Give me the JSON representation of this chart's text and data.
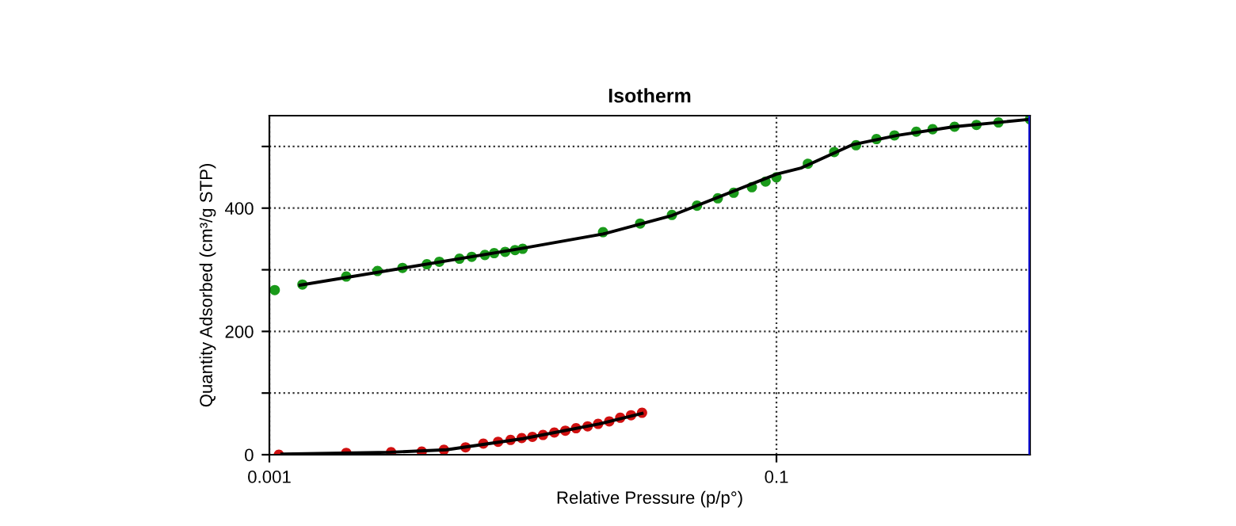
{
  "chart_data": {
    "type": "scatter",
    "title": "Isotherm",
    "xlabel": "Relative Pressure (p/p°)",
    "ylabel": "Quantity Adsorbed (cm³/g STP)",
    "log": "x",
    "xlim": [
      0.001,
      1
    ],
    "xticks": [
      0.001,
      0.1
    ],
    "ylim": [
      0,
      550
    ],
    "yticks": [
      0,
      {
        "value": 100,
        "label": null
      },
      200,
      {
        "value": 300,
        "label": null
      },
      400,
      {
        "value": 500,
        "label": null
      }
    ],
    "grid": true,
    "series": [
      {
        "marker": "circle",
        "color": "#1a9a1a",
        "x": [
          0.00105,
          0.00135,
          0.00201,
          0.00267,
          0.00335,
          0.00418,
          0.00468,
          0.00562,
          0.00628,
          0.00708,
          0.0077,
          0.00851,
          0.00931,
          0.00998,
          0.0207,
          0.029,
          0.0387,
          0.0486,
          0.0587,
          0.0678,
          0.08,
          0.0906,
          0.1,
          0.133,
          0.169,
          0.206,
          0.248,
          0.292,
          0.356,
          0.413,
          0.504,
          0.615,
          0.751,
          1.0
        ],
        "values": [
          267,
          276,
          289,
          298,
          303,
          309,
          313,
          318,
          321,
          324,
          327,
          329,
          332,
          334,
          361,
          375,
          389,
          404,
          416,
          425,
          434,
          443,
          450,
          472,
          491,
          502,
          512,
          518,
          524,
          528,
          532,
          535,
          539,
          544
        ]
      },
      {
        "marker": "circle",
        "color": "#d01010",
        "x": [
          0.00109,
          0.00201,
          0.00302,
          0.00399,
          0.00488,
          0.00594,
          0.00698,
          0.00798,
          0.00894,
          0.00989,
          0.0109,
          0.012,
          0.0133,
          0.0147,
          0.0162,
          0.018,
          0.0198,
          0.0219,
          0.0242,
          0.0267,
          0.0295
        ],
        "values": [
          0,
          3,
          4,
          5,
          8,
          12,
          18,
          21,
          24,
          27,
          29,
          32,
          36,
          39,
          43,
          46,
          50,
          54,
          60,
          64,
          68
        ]
      },
      {
        "type": "line",
        "marker": "none",
        "line_style": "solid",
        "color": "#000000",
        "x": [
          0.00132,
          0.00998,
          0.0207,
          0.0387,
          0.1,
          0.125,
          0.2,
          0.3,
          0.5,
          1.0
        ],
        "values": [
          275,
          335,
          358,
          388,
          455,
          465,
          503,
          518,
          532,
          544
        ]
      },
      {
        "type": "line",
        "marker": "none",
        "line_style": "solid",
        "color": "#000000",
        "x": [
          0.00112,
          0.003,
          0.005,
          0.01,
          0.02,
          0.0295
        ],
        "values": [
          1,
          4,
          8,
          26,
          50,
          67
        ]
      }
    ],
    "ref_lines": [
      {
        "axis": "x",
        "value": 1,
        "color": "#1010d0"
      }
    ]
  }
}
